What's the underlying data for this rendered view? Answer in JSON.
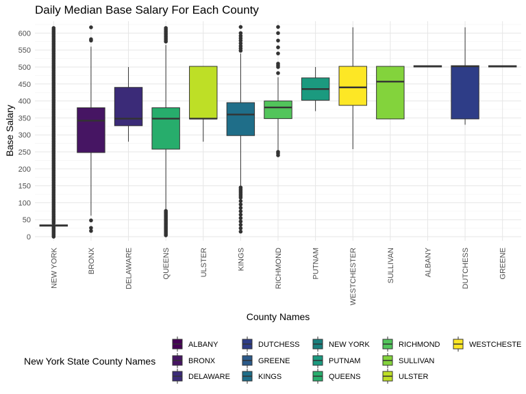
{
  "chart_data": {
    "type": "box",
    "title": "Daily Median Base Salary For Each County",
    "xlabel": "County Names",
    "ylabel": "Base Salary",
    "ylim": [
      -12,
      635
    ],
    "yticks": [
      0,
      50,
      100,
      150,
      200,
      250,
      300,
      350,
      400,
      450,
      500,
      550,
      600
    ],
    "grid": true,
    "legend_position": "bottom",
    "legend_title": "New York State County Names",
    "legend_order": [
      "ALBANY",
      "BRONX",
      "DELAWARE",
      "DUTCHESS",
      "GREENE",
      "KINGS",
      "NEW YORK",
      "PUTNAM",
      "QUEENS",
      "RICHMOND",
      "SULLIVAN",
      "ULSTER",
      "WESTCHESTE"
    ],
    "categories": [
      "NEW YORK",
      "BRONX",
      "DELAWARE",
      "QUEENS",
      "ULSTER",
      "KINGS",
      "RICHMOND",
      "PUTNAM",
      "WESTCHESTER",
      "SULLIVAN",
      "ALBANY",
      "DUTCHESS",
      "GREENE"
    ],
    "colors": {
      "ALBANY": "#440154",
      "BRONX": "#461563",
      "DELAWARE": "#3b2b78",
      "DUTCHESS": "#2e3d87",
      "GREENE": "#2b5a8a",
      "KINGS": "#1f6e89",
      "NEW YORK": "#1a7f7d",
      "PUTNAM": "#1b9a7f",
      "QUEENS": "#27ad6c",
      "RICHMOND": "#52c55b",
      "SULLIVAN": "#83d33c",
      "ULSTER": "#bedf26",
      "WESTCHESTE": "#fde725"
    },
    "boxes": [
      {
        "county": "NEW YORK",
        "q1": 31,
        "median": 33,
        "q3": 35,
        "whisker_low": 31,
        "whisker_high": 35,
        "outliers": [
          0,
          4,
          8,
          12,
          16,
          20,
          24,
          28,
          40,
          45,
          50,
          55,
          60,
          65,
          70,
          75,
          80,
          85,
          90,
          95,
          100,
          105,
          110,
          115,
          120,
          125,
          130,
          135,
          140,
          145,
          150,
          155,
          160,
          165,
          170,
          175,
          180,
          185,
          190,
          195,
          200,
          205,
          210,
          215,
          220,
          225,
          230,
          235,
          240,
          245,
          250,
          255,
          260,
          265,
          270,
          275,
          280,
          285,
          290,
          295,
          300,
          305,
          310,
          315,
          320,
          325,
          330,
          335,
          340,
          345,
          350,
          355,
          360,
          365,
          370,
          375,
          380,
          385,
          390,
          395,
          400,
          405,
          410,
          415,
          420,
          425,
          430,
          435,
          440,
          445,
          450,
          455,
          460,
          465,
          470,
          475,
          480,
          485,
          490,
          495,
          500,
          505,
          510,
          515,
          520,
          525,
          530,
          535,
          540,
          545,
          550,
          555,
          560,
          565,
          570,
          575,
          580,
          585,
          590,
          595,
          600,
          605,
          610,
          615
        ]
      },
      {
        "county": "BRONX",
        "q1": 248,
        "median": 342,
        "q3": 380,
        "whisker_low": 62,
        "whisker_high": 560,
        "outliers": [
          17,
          26,
          48,
          578,
          582,
          617
        ]
      },
      {
        "county": "DELAWARE",
        "q1": 327,
        "median": 348,
        "q3": 440,
        "whisker_low": 280,
        "whisker_high": 500,
        "outliers": []
      },
      {
        "county": "QUEENS",
        "q1": 258,
        "median": 348,
        "q3": 380,
        "whisker_low": 78,
        "whisker_high": 565,
        "outliers": [
          4,
          8,
          12,
          16,
          20,
          24,
          28,
          32,
          36,
          40,
          44,
          48,
          52,
          56,
          60,
          64,
          68,
          72,
          76,
          575,
          580,
          585,
          590,
          595,
          600,
          605,
          610,
          615
        ]
      },
      {
        "county": "ULSTER",
        "q1": 347,
        "median": 348,
        "q3": 502,
        "whisker_low": 280,
        "whisker_high": 502,
        "outliers": []
      },
      {
        "county": "KINGS",
        "q1": 298,
        "median": 360,
        "q3": 395,
        "whisker_low": 150,
        "whisker_high": 540,
        "outliers": [
          15,
          25,
          35,
          45,
          55,
          65,
          75,
          85,
          95,
          105,
          115,
          120,
          125,
          130,
          135,
          140,
          145,
          548,
          555,
          562,
          570,
          578,
          585,
          592,
          600,
          618
        ]
      },
      {
        "county": "RICHMOND",
        "q1": 348,
        "median": 381,
        "q3": 400,
        "whisker_low": 255,
        "whisker_high": 470,
        "outliers": [
          240,
          246,
          250,
          482,
          500,
          505,
          510,
          540,
          558,
          578,
          600,
          618
        ]
      },
      {
        "county": "PUTNAM",
        "q1": 402,
        "median": 435,
        "q3": 468,
        "whisker_low": 370,
        "whisker_high": 500,
        "outliers": []
      },
      {
        "county": "WESTCHESTER",
        "q1": 387,
        "median": 440,
        "q3": 502,
        "whisker_low": 258,
        "whisker_high": 617,
        "outliers": []
      },
      {
        "county": "SULLIVAN",
        "q1": 347,
        "median": 457,
        "q3": 502,
        "whisker_low": 347,
        "whisker_high": 502,
        "outliers": []
      },
      {
        "county": "ALBANY",
        "q1": 500,
        "median": 502,
        "q3": 504,
        "whisker_low": 500,
        "whisker_high": 504,
        "outliers": []
      },
      {
        "county": "DUTCHESS",
        "q1": 347,
        "median": 502,
        "q3": 504,
        "whisker_low": 330,
        "whisker_high": 617,
        "outliers": []
      },
      {
        "county": "GREENE",
        "q1": 500,
        "median": 502,
        "q3": 504,
        "whisker_low": 500,
        "whisker_high": 504,
        "outliers": []
      }
    ]
  }
}
